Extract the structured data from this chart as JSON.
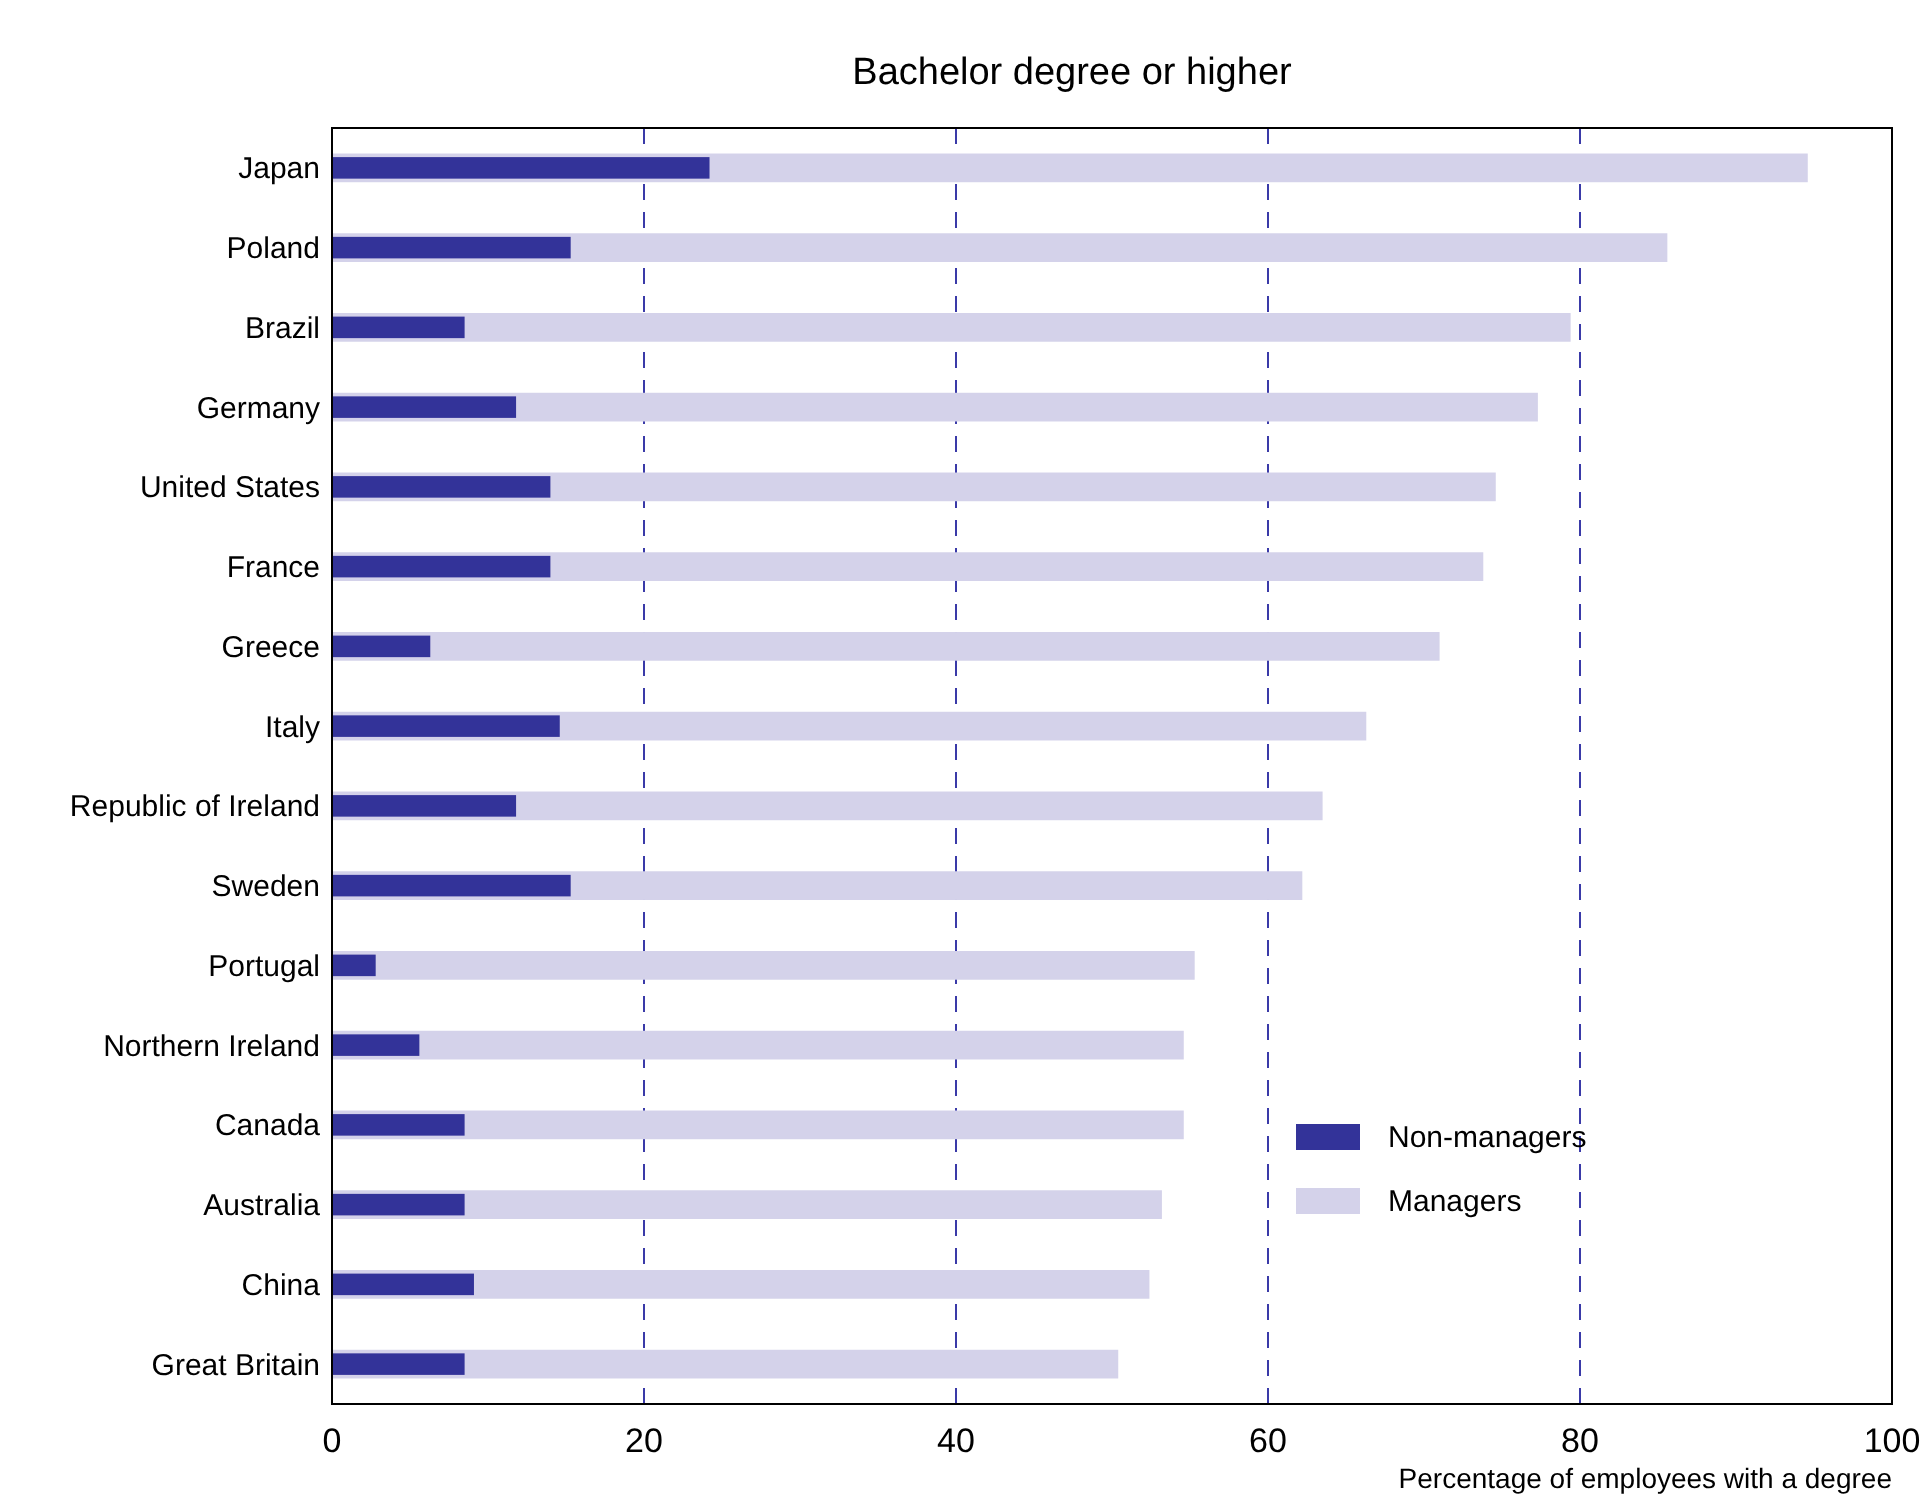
{
  "chart_data": {
    "type": "bar",
    "orientation": "horizontal",
    "title": "Bachelor degree or higher",
    "xlabel": "Percentage of employees with a degree",
    "categories": [
      "Japan",
      "Poland",
      "Brazil",
      "Germany",
      "United States",
      "France",
      "Greece",
      "Italy",
      "Republic of Ireland",
      "Sweden",
      "Portugal",
      "Northern Ireland",
      "Canada",
      "Australia",
      "China",
      "Great Britain"
    ],
    "series": [
      {
        "name": "Non-managers",
        "color": "#333399",
        "values": [
          24.2,
          15.3,
          8.5,
          11.8,
          14.0,
          14.0,
          6.3,
          14.6,
          11.8,
          15.3,
          2.8,
          5.6,
          8.5,
          8.5,
          9.1,
          8.5
        ]
      },
      {
        "name": "Managers",
        "color": "#d4d2ea",
        "values": [
          94.6,
          85.6,
          79.4,
          77.3,
          74.6,
          73.8,
          71.0,
          66.3,
          63.5,
          62.2,
          55.3,
          54.6,
          54.6,
          53.2,
          52.4,
          50.4
        ]
      }
    ],
    "xlim": [
      0,
      100
    ],
    "xticks": [
      0,
      20,
      40,
      60,
      80,
      100
    ],
    "grid": "x",
    "legend": "bottom right"
  }
}
